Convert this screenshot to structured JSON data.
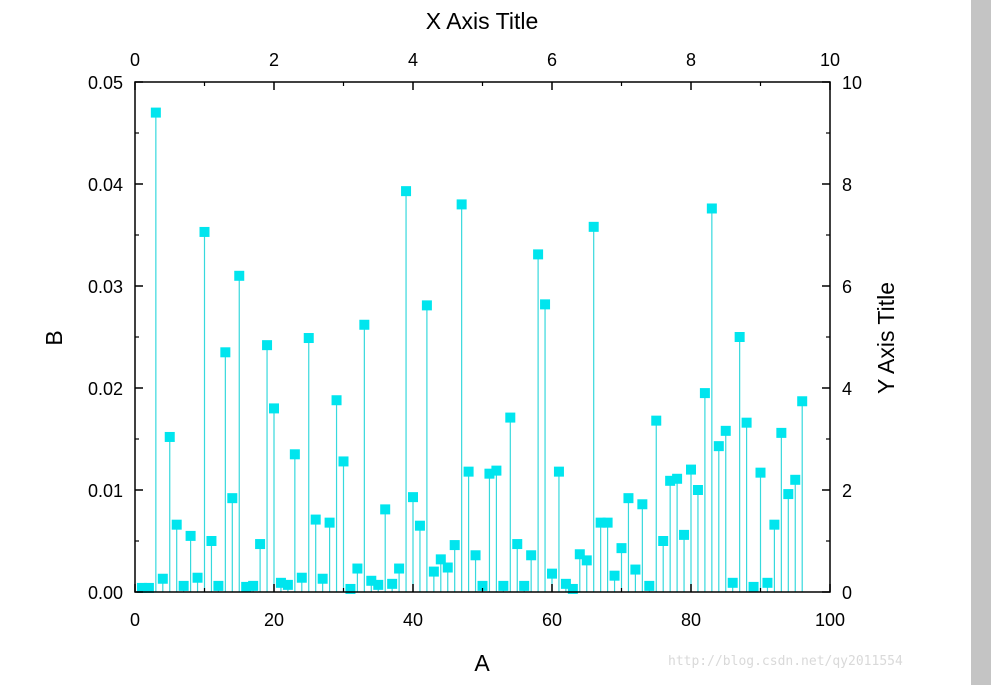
{
  "watermark": "http://blog.csdn.net/qy2011554",
  "colors": {
    "series": "#00e5ee",
    "stem": "#36d9dd",
    "axis": "#000000",
    "scrollbar": "#c4c4c4"
  },
  "chart_data": {
    "type": "scatter",
    "style": "stem-with-square-markers",
    "xlabel": "A",
    "ylabel": "B",
    "top_xlabel": "X Axis Title",
    "right_ylabel": "Y Axis Title",
    "xlim": [
      0,
      100
    ],
    "ylim": [
      0,
      0.05
    ],
    "top_xlim": [
      0,
      10
    ],
    "right_ylim": [
      0,
      10
    ],
    "x_ticks": [
      "0",
      "20",
      "40",
      "60",
      "80",
      "100"
    ],
    "y_ticks": [
      "0.00",
      "0.01",
      "0.02",
      "0.03",
      "0.04",
      "0.05"
    ],
    "top_x_ticks": [
      "0",
      "2",
      "4",
      "6",
      "8",
      "10"
    ],
    "right_y_ticks": [
      "0",
      "2",
      "4",
      "6",
      "8",
      "10"
    ],
    "grid": false,
    "legend": "none",
    "series": [
      {
        "x": [
          1,
          2,
          3,
          4,
          5,
          6,
          7,
          8,
          9,
          10,
          11,
          12,
          13,
          14,
          15,
          16,
          17,
          18,
          19,
          20,
          21,
          22,
          23,
          24,
          25,
          26,
          27,
          28,
          29,
          30,
          31,
          32,
          33,
          34,
          35,
          36,
          37,
          38,
          39,
          40,
          41,
          42,
          43,
          44,
          45,
          46,
          47,
          48,
          49,
          50,
          51,
          52,
          53,
          54,
          55,
          56,
          57,
          58,
          59,
          60,
          61,
          62,
          63,
          64,
          65,
          66,
          67,
          68,
          69,
          70,
          71,
          72,
          73,
          74,
          75,
          76,
          77,
          78,
          79,
          80,
          81,
          82,
          83,
          84,
          85,
          86,
          87,
          88,
          89,
          90,
          91,
          92,
          93,
          94,
          95,
          96
        ],
        "values": [
          0.0004,
          0.0004,
          0.047,
          0.0013,
          0.0152,
          0.0066,
          0.0006,
          0.0055,
          0.0014,
          0.0353,
          0.005,
          0.0006,
          0.0235,
          0.0092,
          0.031,
          0.0005,
          0.0006,
          0.0047,
          0.0242,
          0.018,
          0.0009,
          0.0007,
          0.0135,
          0.0014,
          0.0249,
          0.0071,
          0.0013,
          0.0068,
          0.0188,
          0.0128,
          0.0003,
          0.0023,
          0.0262,
          0.0011,
          0.0007,
          0.0081,
          0.0008,
          0.0023,
          0.0393,
          0.0093,
          0.0065,
          0.0281,
          0.002,
          0.0032,
          0.0024,
          0.0046,
          0.038,
          0.0118,
          0.0036,
          0.0006,
          0.0116,
          0.0119,
          0.0006,
          0.0171,
          0.0047,
          0.0006,
          0.0036,
          0.0331,
          0.0282,
          0.0018,
          0.0118,
          0.0008,
          0.0003,
          0.0037,
          0.0031,
          0.0358,
          0.0068,
          0.0068,
          0.0016,
          0.0043,
          0.0092,
          0.0022,
          0.0086,
          0.0006,
          0.0168,
          0.005,
          0.0109,
          0.0111,
          0.0056,
          0.012,
          0.01,
          0.0195,
          0.0376,
          0.0143,
          0.0158,
          0.0009,
          0.025,
          0.0166,
          0.0005,
          0.0117,
          0.0009,
          0.0066,
          0.0156,
          0.0096,
          0.011,
          0.0187
        ]
      }
    ]
  }
}
